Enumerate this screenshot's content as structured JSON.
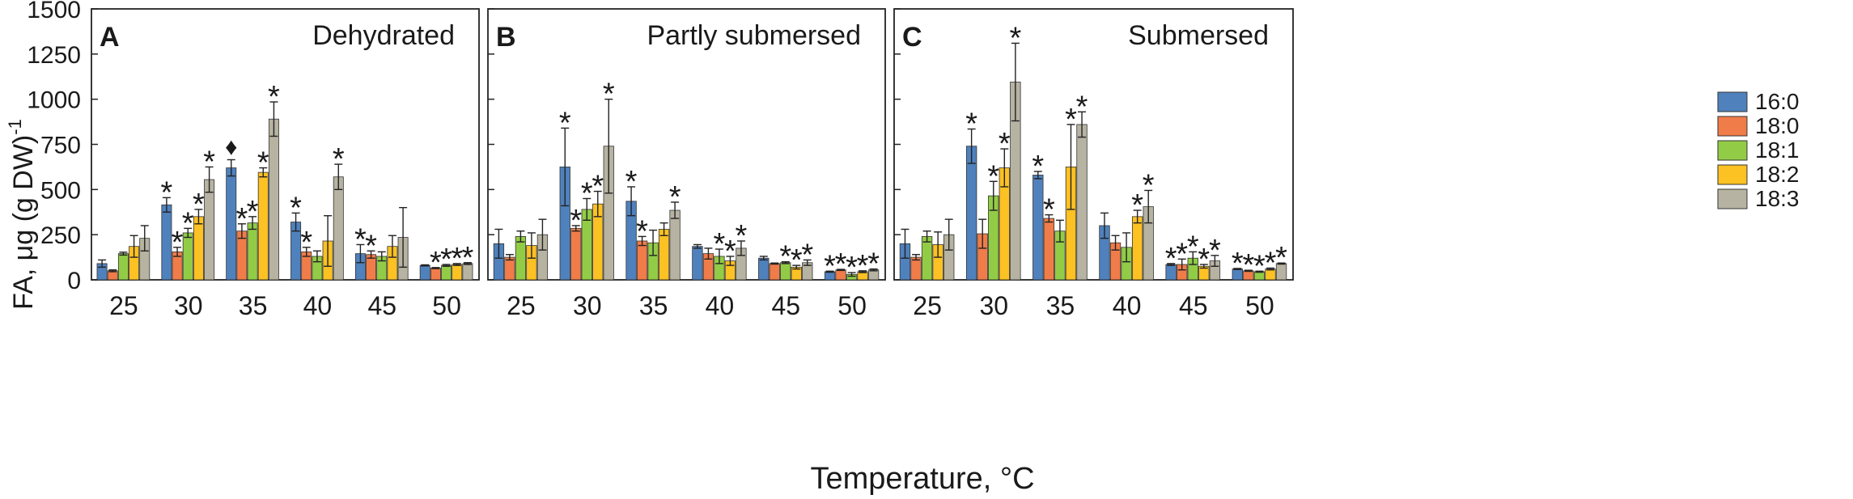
{
  "chart_data": {
    "type": "bar",
    "ylabel": "FA, μg (g DW)",
    "ylabel_sup": "-1",
    "xlabel": "Temperature, °C",
    "ylim": [
      0,
      1500
    ],
    "yticks": [
      "0",
      "250",
      "500",
      "750",
      "1000",
      "1250",
      "1500"
    ],
    "categories": [
      "25",
      "30",
      "35",
      "40",
      "45",
      "50"
    ],
    "legend": [
      {
        "name": "16:0",
        "color": "#4f81bd"
      },
      {
        "name": "18:0",
        "color": "#f07c4a"
      },
      {
        "name": "18:1",
        "color": "#92cc47"
      },
      {
        "name": "18:2",
        "color": "#fcc122"
      },
      {
        "name": "18:3",
        "color": "#b7b3a2"
      }
    ],
    "panels": [
      {
        "letter": "A",
        "title": "Dehydrated",
        "values": [
          [
            90,
            50,
            145,
            185,
            230
          ],
          [
            415,
            155,
            260,
            350,
            555
          ],
          [
            620,
            270,
            315,
            595,
            890
          ],
          [
            320,
            155,
            130,
            215,
            570
          ],
          [
            145,
            140,
            130,
            185,
            235
          ],
          [
            80,
            65,
            80,
            85,
            90
          ]
        ],
        "errors": [
          [
            20,
            5,
            8,
            60,
            70
          ],
          [
            40,
            25,
            25,
            40,
            70
          ],
          [
            45,
            40,
            35,
            25,
            95
          ],
          [
            50,
            25,
            30,
            140,
            70
          ],
          [
            50,
            20,
            25,
            60,
            165
          ],
          [
            3,
            3,
            5,
            5,
            5
          ]
        ],
        "marks": [
          [
            "",
            "",
            "",
            "",
            ""
          ],
          [
            "*",
            "*",
            "*",
            "*",
            "*"
          ],
          [
            "♦",
            "*",
            "*",
            "*",
            "*"
          ],
          [
            "*",
            "*",
            "",
            "",
            "*"
          ],
          [
            "*",
            "*",
            "",
            "",
            ""
          ],
          [
            "",
            "*",
            "*",
            "*",
            "*"
          ]
        ]
      },
      {
        "letter": "B",
        "title": "Partly submersed",
        "values": [
          [
            200,
            125,
            240,
            190,
            250
          ],
          [
            625,
            285,
            390,
            420,
            740
          ],
          [
            435,
            215,
            205,
            280,
            385
          ],
          [
            185,
            145,
            130,
            105,
            175
          ],
          [
            120,
            90,
            95,
            70,
            95
          ],
          [
            45,
            55,
            30,
            45,
            55
          ]
        ],
        "errors": [
          [
            80,
            15,
            30,
            70,
            85
          ],
          [
            215,
            15,
            60,
            70,
            260
          ],
          [
            80,
            25,
            70,
            35,
            45
          ],
          [
            10,
            30,
            40,
            25,
            40
          ],
          [
            10,
            3,
            5,
            10,
            15
          ],
          [
            3,
            3,
            10,
            5,
            5
          ]
        ],
        "marks": [
          [
            "",
            "",
            "",
            "",
            ""
          ],
          [
            "*",
            "*",
            "*",
            "*",
            "*"
          ],
          [
            "*",
            "*",
            "",
            "",
            "*"
          ],
          [
            "",
            "",
            "*",
            "*",
            "*"
          ],
          [
            "",
            "",
            "*",
            "*",
            "*"
          ],
          [
            "*",
            "*",
            "*",
            "*",
            "*"
          ]
        ]
      },
      {
        "letter": "C",
        "title": "Submersed",
        "values": [
          [
            200,
            125,
            240,
            195,
            250
          ],
          [
            740,
            255,
            465,
            620,
            1095
          ],
          [
            580,
            340,
            270,
            625,
            860
          ],
          [
            300,
            205,
            180,
            350,
            405
          ],
          [
            85,
            85,
            120,
            75,
            105
          ],
          [
            60,
            50,
            45,
            60,
            90
          ]
        ],
        "errors": [
          [
            80,
            15,
            30,
            70,
            85
          ],
          [
            95,
            80,
            80,
            105,
            215
          ],
          [
            20,
            20,
            60,
            235,
            70
          ],
          [
            70,
            40,
            80,
            35,
            90
          ],
          [
            5,
            30,
            35,
            10,
            30
          ],
          [
            3,
            3,
            3,
            5,
            3
          ]
        ],
        "marks": [
          [
            "",
            "",
            "",
            "",
            ""
          ],
          [
            "*",
            "",
            "*",
            "*",
            "*"
          ],
          [
            "*",
            "*",
            "",
            "*",
            "*"
          ],
          [
            "",
            "",
            "",
            "*",
            "*"
          ],
          [
            "*",
            "*",
            "*",
            "*",
            "*"
          ],
          [
            "*",
            "*",
            "*",
            "*",
            "*"
          ]
        ]
      }
    ]
  }
}
